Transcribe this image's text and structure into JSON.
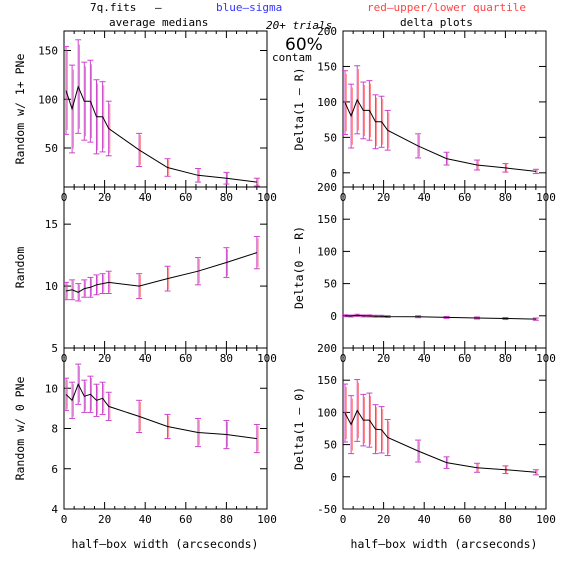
{
  "header": {
    "file": "7q.fits",
    "dash": "—",
    "blue_label": "blue–sigma",
    "red_label": "red–upper/lower quartile",
    "left_title": "average medians",
    "right_title": "delta plots",
    "trials": "20+ trials",
    "contam_pct": "60%",
    "contam_word": "contam"
  },
  "colors": {
    "blue": "#3333ff",
    "red": "#ff4444",
    "magenta": "#cc44cc",
    "line": "#000000"
  },
  "xlabel": "half–box width (arcseconds)",
  "chart_data": [
    {
      "type": "line",
      "ylabel": "Random w/ 1+ PNe",
      "xlim": [
        0,
        100
      ],
      "ylim": [
        10,
        170
      ],
      "xticks": [
        0,
        20,
        40,
        60,
        80,
        100
      ],
      "yticks": [
        50,
        100,
        150
      ],
      "x": [
        1,
        4,
        7,
        10,
        13,
        16,
        19,
        22,
        37,
        51,
        66,
        80,
        95
      ],
      "y": [
        109,
        90,
        113,
        98,
        98,
        82,
        82,
        70,
        48,
        30,
        22,
        19,
        15
      ],
      "err": [
        45,
        45,
        48,
        40,
        42,
        38,
        36,
        28,
        17,
        9,
        7,
        6,
        4
      ]
    },
    {
      "type": "line",
      "ylabel": "Random",
      "xlim": [
        0,
        100
      ],
      "ylim": [
        5,
        18
      ],
      "xticks": [
        0,
        20,
        40,
        60,
        80,
        100
      ],
      "yticks": [
        5,
        10,
        15
      ],
      "x": [
        1,
        4,
        7,
        10,
        13,
        16,
        19,
        22,
        37,
        51,
        66,
        80,
        95
      ],
      "y": [
        9.6,
        9.7,
        9.5,
        9.8,
        9.9,
        10.1,
        10.2,
        10.3,
        10.0,
        10.6,
        11.2,
        11.9,
        12.7
      ],
      "err": [
        0.7,
        0.8,
        0.7,
        0.7,
        0.8,
        0.8,
        0.8,
        0.9,
        1.0,
        1.0,
        1.1,
        1.2,
        1.3
      ]
    },
    {
      "type": "line",
      "ylabel": "Random w/ 0 PNe",
      "xlim": [
        0,
        100
      ],
      "ylim": [
        4,
        12
      ],
      "xticks": [
        0,
        20,
        40,
        60,
        80,
        100
      ],
      "yticks": [
        4,
        6,
        8,
        10
      ],
      "x": [
        1,
        4,
        7,
        10,
        13,
        16,
        19,
        22,
        37,
        51,
        66,
        80,
        95
      ],
      "y": [
        9.7,
        9.4,
        10.2,
        9.6,
        9.7,
        9.4,
        9.5,
        9.1,
        8.6,
        8.1,
        7.8,
        7.7,
        7.5
      ],
      "err": [
        0.8,
        0.9,
        1.0,
        0.8,
        0.9,
        0.8,
        0.8,
        0.7,
        0.8,
        0.6,
        0.7,
        0.7,
        0.7
      ]
    },
    {
      "type": "line",
      "ylabel": "Delta(1 – R)",
      "xlim": [
        0,
        100
      ],
      "ylim": [
        -20,
        200
      ],
      "xticks": [
        0,
        20,
        40,
        60,
        80,
        100
      ],
      "yticks": [
        0,
        50,
        100,
        150,
        200
      ],
      "x": [
        1,
        4,
        7,
        10,
        13,
        16,
        19,
        22,
        37,
        51,
        66,
        80,
        95
      ],
      "y": [
        99,
        80,
        103,
        88,
        88,
        72,
        72,
        60,
        38,
        20,
        11,
        7,
        2
      ],
      "err": [
        45,
        45,
        48,
        40,
        42,
        38,
        36,
        28,
        17,
        9,
        7,
        6,
        3
      ]
    },
    {
      "type": "line",
      "ylabel": "Delta(0 – R)",
      "xlim": [
        0,
        100
      ],
      "ylim": [
        -50,
        200
      ],
      "xticks": [
        0,
        20,
        40,
        60,
        80,
        100
      ],
      "yticks": [
        0,
        50,
        100,
        150,
        200
      ],
      "x": [
        1,
        4,
        7,
        10,
        13,
        16,
        19,
        22,
        37,
        51,
        66,
        80,
        95
      ],
      "y": [
        0.1,
        -0.3,
        0.7,
        -0.2,
        -0.2,
        -0.7,
        -0.7,
        -1.2,
        -1.4,
        -2.5,
        -3.4,
        -4.2,
        -5.2
      ],
      "err": [
        1.5,
        1.5,
        1.7,
        1.5,
        1.6,
        1.5,
        1.5,
        1.4,
        1.5,
        1.4,
        1.6,
        1.6,
        1.8
      ]
    },
    {
      "type": "line",
      "ylabel": "Delta(1 – 0)",
      "xlim": [
        0,
        100
      ],
      "ylim": [
        -50,
        200
      ],
      "xticks": [
        0,
        20,
        40,
        60,
        80,
        100
      ],
      "yticks": [
        -50,
        0,
        50,
        100,
        150,
        200
      ],
      "x": [
        1,
        4,
        7,
        10,
        13,
        16,
        19,
        22,
        37,
        51,
        66,
        80,
        95
      ],
      "y": [
        99,
        81,
        103,
        88,
        88,
        74,
        73,
        61,
        40,
        22,
        14,
        11,
        7
      ],
      "err": [
        45,
        45,
        48,
        40,
        42,
        38,
        36,
        28,
        17,
        9,
        7,
        6,
        4
      ]
    }
  ]
}
